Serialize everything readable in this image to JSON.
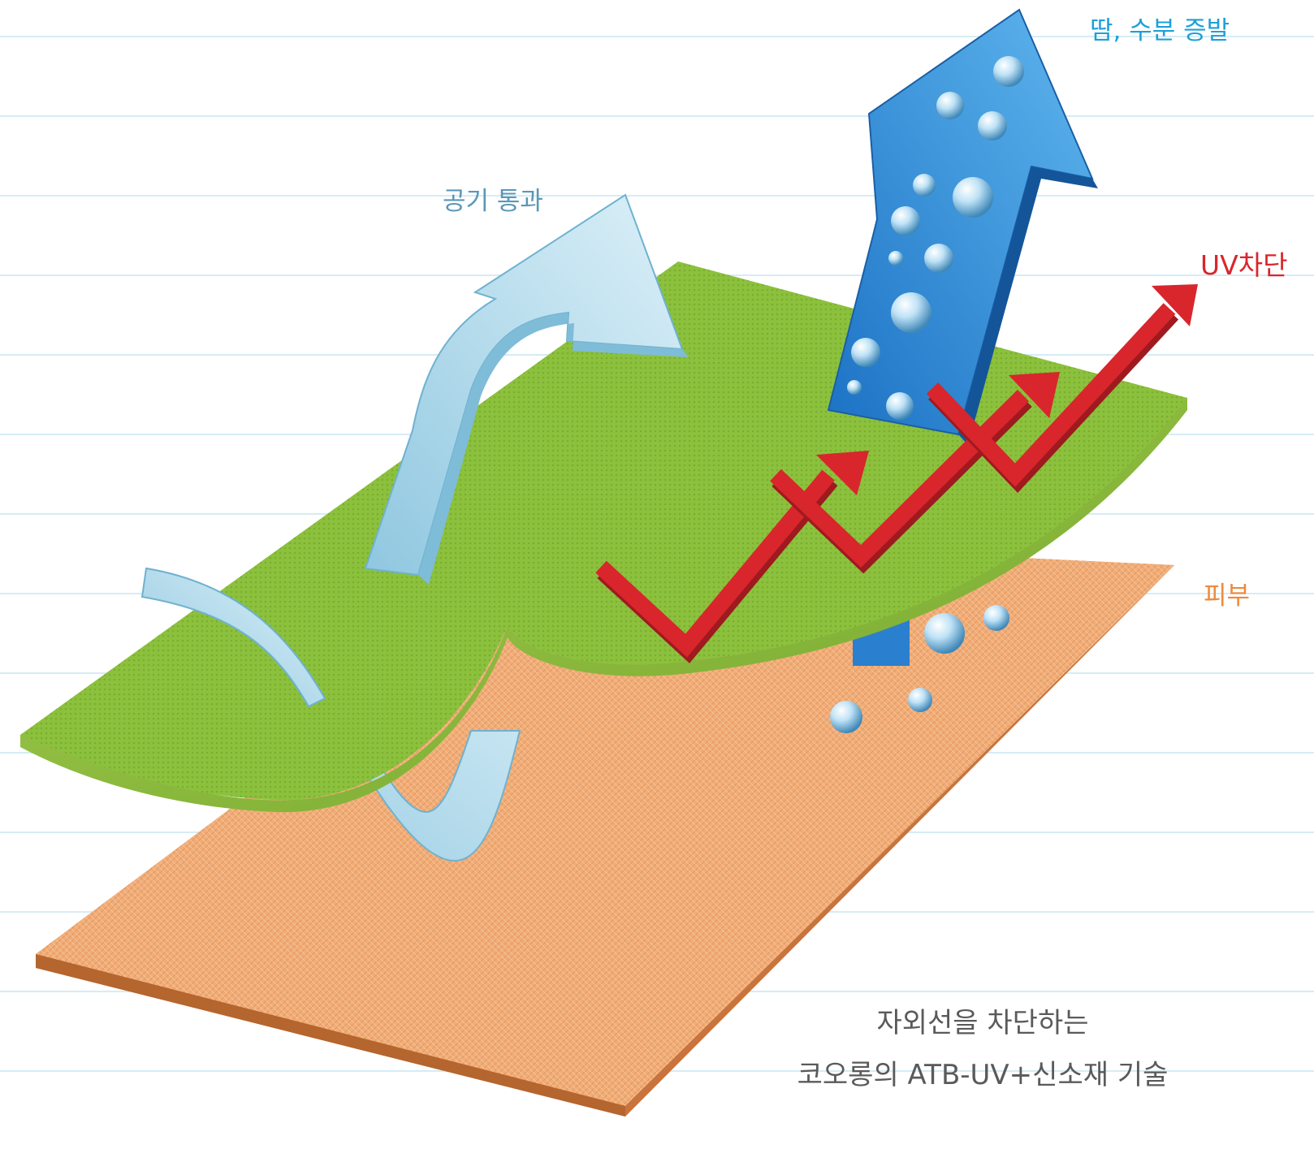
{
  "labels": {
    "air_pass": "공기 통과",
    "sweat_evaporation": "땀, 수분 증발",
    "uv_block": "UV차단",
    "skin": "피부"
  },
  "caption": {
    "line1": "자외선을 차단하는",
    "line2": "코오롱의 ATB-UV+신소재 기술"
  },
  "colors": {
    "fabric_green": "#8fc23f",
    "skin_orange": "#f2b07c",
    "air_arrow": "#b8dcec",
    "sweat_arrow": "#2b8fd6",
    "uv_arrow": "#d8262c",
    "guide_line": "#d6ecf5"
  },
  "icons": {
    "air": "light-blue-curved-arrow-icon",
    "sweat": "blue-arrow-with-droplets-icon",
    "uv": "red-zigzag-arrow-icon",
    "droplet": "water-droplet-icon"
  }
}
